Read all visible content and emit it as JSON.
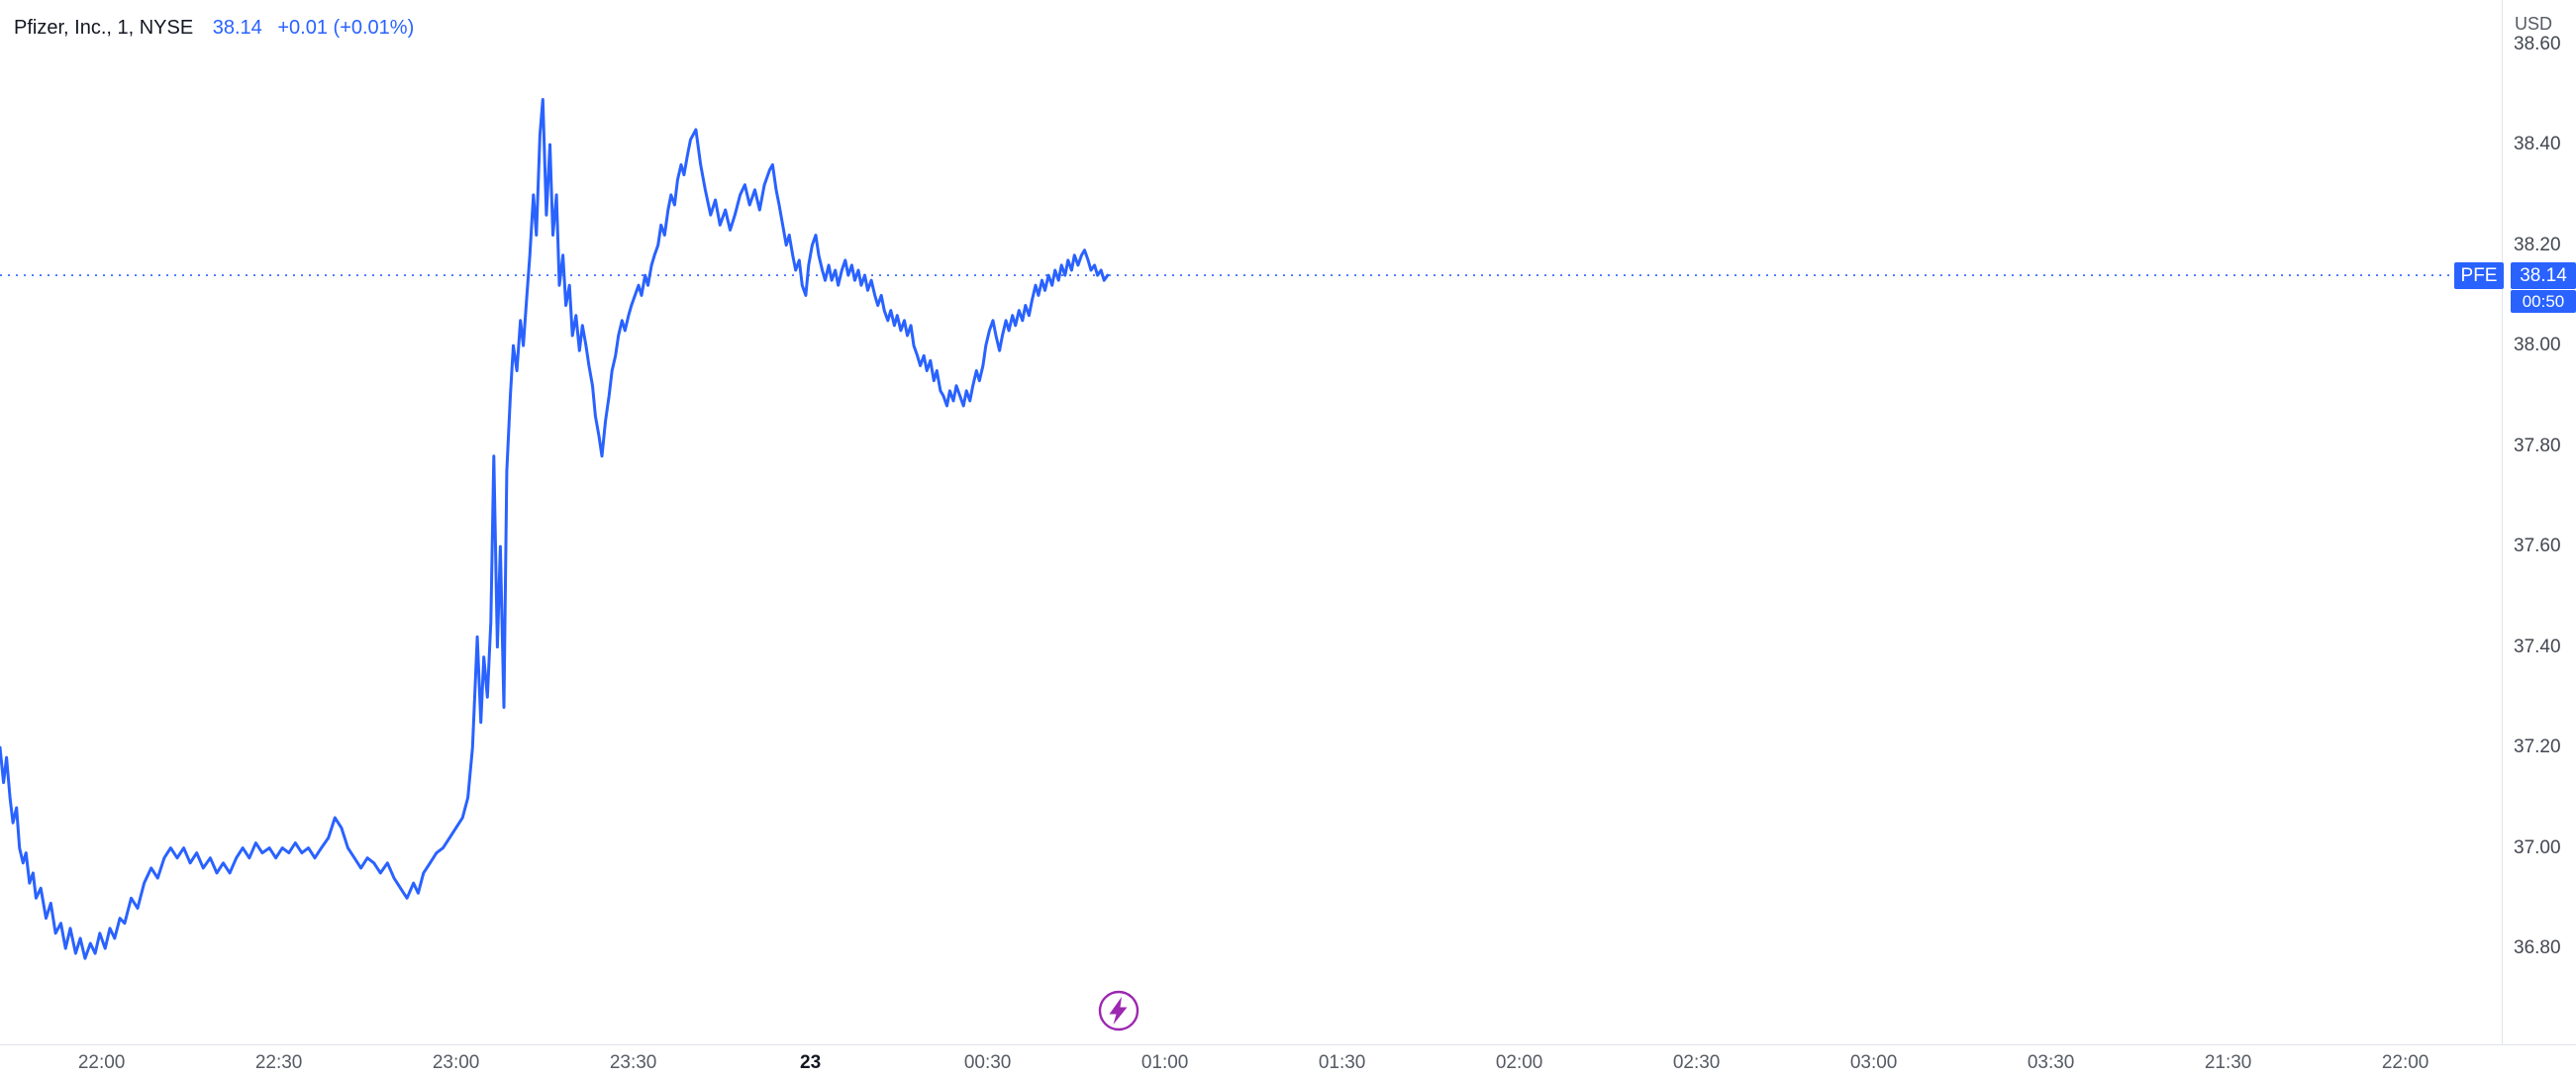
{
  "legend": {
    "title": "Pfizer, Inc., 1, NYSE",
    "price": "38.14",
    "change": "+0.01 (+0.01%)"
  },
  "axis": {
    "currency_label": "USD"
  },
  "chart_data": {
    "type": "line",
    "symbol": "PFE",
    "title": "Pfizer, Inc., 1, NYSE",
    "interval": "1",
    "exchange": "NYSE",
    "currency": "USD",
    "last_price": 38.14,
    "last_price_str": "38.14",
    "change": "+0.01",
    "change_pct": "+0.01%",
    "countdown": "00:50",
    "line_color": "#2962ff",
    "label_bg_color": "#2962ff",
    "y_range": [
      36.54,
      38.688
    ],
    "grid": false,
    "y_ticks": [
      38.6,
      38.4,
      38.2,
      38.0,
      37.8,
      37.6,
      37.4,
      37.2,
      37.0,
      36.8
    ],
    "x_ticks": [
      {
        "label": "22:00",
        "t": 17.2,
        "bold": false
      },
      {
        "label": "22:30",
        "t": 47.2,
        "bold": false
      },
      {
        "label": "23:00",
        "t": 77.2,
        "bold": false
      },
      {
        "label": "23:30",
        "t": 107.2,
        "bold": false
      },
      {
        "label": "23",
        "t": 137.2,
        "bold": true
      },
      {
        "label": "00:30",
        "t": 167.2,
        "bold": false
      },
      {
        "label": "01:00",
        "t": 197.2,
        "bold": false
      },
      {
        "label": "01:30",
        "t": 227.2,
        "bold": false
      },
      {
        "label": "02:00",
        "t": 257.2,
        "bold": false
      },
      {
        "label": "02:30",
        "t": 287.2,
        "bold": false
      },
      {
        "label": "03:00",
        "t": 317.2,
        "bold": false
      },
      {
        "label": "03:30",
        "t": 347.2,
        "bold": false
      },
      {
        "label": "21:30",
        "t": 377.2,
        "bold": false
      },
      {
        "label": "22:00",
        "t": 407.2,
        "bold": false
      }
    ],
    "points": [
      [
        0,
        37.2
      ],
      [
        0.6,
        37.13
      ],
      [
        1.1,
        37.18
      ],
      [
        1.7,
        37.1
      ],
      [
        2.2,
        37.05
      ],
      [
        2.8,
        37.08
      ],
      [
        3.3,
        37.0
      ],
      [
        3.9,
        36.97
      ],
      [
        4.4,
        36.99
      ],
      [
        5,
        36.93
      ],
      [
        5.6,
        36.95
      ],
      [
        6.1,
        36.9
      ],
      [
        6.9,
        36.92
      ],
      [
        7.8,
        36.86
      ],
      [
        8.6,
        36.89
      ],
      [
        9.4,
        36.83
      ],
      [
        10.3,
        36.85
      ],
      [
        11.1,
        36.8
      ],
      [
        11.9,
        36.84
      ],
      [
        12.8,
        36.79
      ],
      [
        13.6,
        36.82
      ],
      [
        14.4,
        36.78
      ],
      [
        15.3,
        36.81
      ],
      [
        16.1,
        36.79
      ],
      [
        16.9,
        36.83
      ],
      [
        17.8,
        36.8
      ],
      [
        18.6,
        36.84
      ],
      [
        19.4,
        36.82
      ],
      [
        20.3,
        36.86
      ],
      [
        21.1,
        36.85
      ],
      [
        22.2,
        36.9
      ],
      [
        23.3,
        36.88
      ],
      [
        24.4,
        36.93
      ],
      [
        25.6,
        36.96
      ],
      [
        26.7,
        36.94
      ],
      [
        27.8,
        36.98
      ],
      [
        28.9,
        37.0
      ],
      [
        30,
        36.98
      ],
      [
        31.1,
        37.0
      ],
      [
        32.2,
        36.97
      ],
      [
        33.3,
        36.99
      ],
      [
        34.4,
        36.96
      ],
      [
        35.6,
        36.98
      ],
      [
        36.7,
        36.95
      ],
      [
        37.8,
        36.97
      ],
      [
        38.9,
        36.95
      ],
      [
        40,
        36.98
      ],
      [
        41.1,
        37.0
      ],
      [
        42.2,
        36.98
      ],
      [
        43.3,
        37.01
      ],
      [
        44.4,
        36.99
      ],
      [
        45.6,
        37.0
      ],
      [
        46.7,
        36.98
      ],
      [
        47.8,
        37.0
      ],
      [
        48.9,
        36.99
      ],
      [
        50,
        37.01
      ],
      [
        51.1,
        36.99
      ],
      [
        52.2,
        37.0
      ],
      [
        53.3,
        36.98
      ],
      [
        54.4,
        37.0
      ],
      [
        55.6,
        37.02
      ],
      [
        56.7,
        37.06
      ],
      [
        57.8,
        37.04
      ],
      [
        58.9,
        37.0
      ],
      [
        60,
        36.98
      ],
      [
        61.1,
        36.96
      ],
      [
        62.2,
        36.98
      ],
      [
        63.3,
        36.97
      ],
      [
        64.4,
        36.95
      ],
      [
        65.6,
        36.97
      ],
      [
        66.7,
        36.94
      ],
      [
        67.8,
        36.92
      ],
      [
        68.9,
        36.9
      ],
      [
        70,
        36.93
      ],
      [
        70.8,
        36.91
      ],
      [
        71.7,
        36.95
      ],
      [
        72.8,
        36.97
      ],
      [
        73.9,
        36.99
      ],
      [
        75,
        37.0
      ],
      [
        76.1,
        37.02
      ],
      [
        77.2,
        37.04
      ],
      [
        78.3,
        37.06
      ],
      [
        79.2,
        37.1
      ],
      [
        80,
        37.2
      ],
      [
        80.8,
        37.42
      ],
      [
        81.4,
        37.25
      ],
      [
        81.9,
        37.38
      ],
      [
        82.5,
        37.3
      ],
      [
        83.1,
        37.45
      ],
      [
        83.6,
        37.78
      ],
      [
        84.2,
        37.4
      ],
      [
        84.7,
        37.6
      ],
      [
        85.3,
        37.28
      ],
      [
        85.8,
        37.75
      ],
      [
        86.4,
        37.9
      ],
      [
        86.9,
        38.0
      ],
      [
        87.5,
        37.95
      ],
      [
        88.1,
        38.05
      ],
      [
        88.6,
        38.0
      ],
      [
        89.2,
        38.1
      ],
      [
        89.7,
        38.18
      ],
      [
        90.3,
        38.3
      ],
      [
        90.8,
        38.22
      ],
      [
        91.4,
        38.42
      ],
      [
        91.9,
        38.49
      ],
      [
        92.5,
        38.26
      ],
      [
        93.1,
        38.4
      ],
      [
        93.6,
        38.22
      ],
      [
        94.2,
        38.3
      ],
      [
        94.7,
        38.12
      ],
      [
        95.3,
        38.18
      ],
      [
        95.8,
        38.08
      ],
      [
        96.4,
        38.12
      ],
      [
        96.9,
        38.02
      ],
      [
        97.5,
        38.06
      ],
      [
        98.1,
        37.99
      ],
      [
        98.6,
        38.04
      ],
      [
        99.2,
        38.0
      ],
      [
        99.7,
        37.96
      ],
      [
        100.3,
        37.92
      ],
      [
        100.8,
        37.86
      ],
      [
        101.4,
        37.82
      ],
      [
        101.9,
        37.78
      ],
      [
        102.5,
        37.85
      ],
      [
        103.1,
        37.9
      ],
      [
        103.6,
        37.95
      ],
      [
        104.2,
        37.98
      ],
      [
        104.7,
        38.02
      ],
      [
        105.3,
        38.05
      ],
      [
        105.8,
        38.03
      ],
      [
        106.4,
        38.06
      ],
      [
        106.9,
        38.08
      ],
      [
        107.5,
        38.1
      ],
      [
        108.1,
        38.12
      ],
      [
        108.6,
        38.1
      ],
      [
        109.2,
        38.14
      ],
      [
        109.7,
        38.12
      ],
      [
        110.3,
        38.16
      ],
      [
        110.8,
        38.18
      ],
      [
        111.4,
        38.2
      ],
      [
        111.9,
        38.24
      ],
      [
        112.5,
        38.22
      ],
      [
        113.1,
        38.27
      ],
      [
        113.6,
        38.3
      ],
      [
        114.2,
        38.28
      ],
      [
        114.7,
        38.33
      ],
      [
        115.3,
        38.36
      ],
      [
        115.8,
        38.34
      ],
      [
        116.4,
        38.38
      ],
      [
        116.9,
        38.41
      ],
      [
        117.8,
        38.43
      ],
      [
        118.6,
        38.36
      ],
      [
        119.4,
        38.31
      ],
      [
        120.3,
        38.26
      ],
      [
        121.1,
        38.29
      ],
      [
        121.9,
        38.24
      ],
      [
        122.8,
        38.27
      ],
      [
        123.6,
        38.23
      ],
      [
        124.4,
        38.26
      ],
      [
        125.3,
        38.3
      ],
      [
        126.1,
        38.32
      ],
      [
        126.9,
        38.28
      ],
      [
        127.8,
        38.31
      ],
      [
        128.6,
        38.27
      ],
      [
        129.4,
        38.32
      ],
      [
        130.3,
        38.35
      ],
      [
        130.8,
        38.36
      ],
      [
        131.4,
        38.31
      ],
      [
        131.9,
        38.28
      ],
      [
        132.5,
        38.24
      ],
      [
        133.1,
        38.2
      ],
      [
        133.6,
        38.22
      ],
      [
        134.2,
        38.18
      ],
      [
        134.7,
        38.15
      ],
      [
        135.3,
        38.17
      ],
      [
        135.8,
        38.12
      ],
      [
        136.4,
        38.1
      ],
      [
        136.9,
        38.16
      ],
      [
        137.5,
        38.2
      ],
      [
        138.1,
        38.22
      ],
      [
        138.6,
        38.18
      ],
      [
        139.2,
        38.15
      ],
      [
        139.7,
        38.13
      ],
      [
        140.3,
        38.16
      ],
      [
        140.8,
        38.13
      ],
      [
        141.4,
        38.15
      ],
      [
        141.9,
        38.12
      ],
      [
        142.5,
        38.15
      ],
      [
        143.1,
        38.17
      ],
      [
        143.6,
        38.14
      ],
      [
        144.2,
        38.16
      ],
      [
        144.7,
        38.13
      ],
      [
        145.3,
        38.15
      ],
      [
        145.8,
        38.12
      ],
      [
        146.4,
        38.14
      ],
      [
        146.9,
        38.11
      ],
      [
        147.5,
        38.13
      ],
      [
        148.1,
        38.1
      ],
      [
        148.6,
        38.08
      ],
      [
        149.2,
        38.1
      ],
      [
        149.7,
        38.07
      ],
      [
        150.3,
        38.05
      ],
      [
        150.8,
        38.07
      ],
      [
        151.4,
        38.04
      ],
      [
        151.9,
        38.06
      ],
      [
        152.5,
        38.03
      ],
      [
        153.1,
        38.05
      ],
      [
        153.6,
        38.02
      ],
      [
        154.2,
        38.04
      ],
      [
        154.7,
        38.0
      ],
      [
        155.3,
        37.98
      ],
      [
        155.8,
        37.96
      ],
      [
        156.4,
        37.98
      ],
      [
        156.9,
        37.95
      ],
      [
        157.5,
        37.97
      ],
      [
        158.1,
        37.93
      ],
      [
        158.6,
        37.95
      ],
      [
        159.2,
        37.91
      ],
      [
        159.7,
        37.9
      ],
      [
        160.3,
        37.88
      ],
      [
        160.8,
        37.91
      ],
      [
        161.4,
        37.89
      ],
      [
        161.9,
        37.92
      ],
      [
        162.5,
        37.9
      ],
      [
        163.1,
        37.88
      ],
      [
        163.6,
        37.91
      ],
      [
        164.2,
        37.89
      ],
      [
        164.7,
        37.92
      ],
      [
        165.3,
        37.95
      ],
      [
        165.8,
        37.93
      ],
      [
        166.4,
        37.96
      ],
      [
        166.9,
        38.0
      ],
      [
        167.5,
        38.03
      ],
      [
        168.1,
        38.05
      ],
      [
        168.6,
        38.02
      ],
      [
        169.2,
        37.99
      ],
      [
        169.7,
        38.02
      ],
      [
        170.3,
        38.05
      ],
      [
        170.8,
        38.03
      ],
      [
        171.4,
        38.06
      ],
      [
        171.9,
        38.04
      ],
      [
        172.5,
        38.07
      ],
      [
        173.1,
        38.05
      ],
      [
        173.6,
        38.08
      ],
      [
        174.2,
        38.06
      ],
      [
        174.7,
        38.09
      ],
      [
        175.3,
        38.12
      ],
      [
        175.8,
        38.1
      ],
      [
        176.4,
        38.13
      ],
      [
        176.9,
        38.11
      ],
      [
        177.5,
        38.14
      ],
      [
        178.1,
        38.12
      ],
      [
        178.6,
        38.15
      ],
      [
        179.2,
        38.13
      ],
      [
        179.7,
        38.16
      ],
      [
        180.3,
        38.14
      ],
      [
        180.8,
        38.17
      ],
      [
        181.4,
        38.15
      ],
      [
        181.9,
        38.18
      ],
      [
        182.5,
        38.16
      ],
      [
        183.1,
        38.18
      ],
      [
        183.6,
        38.19
      ],
      [
        184.2,
        38.17
      ],
      [
        184.7,
        38.15
      ],
      [
        185.3,
        38.16
      ],
      [
        185.8,
        38.14
      ],
      [
        186.4,
        38.15
      ],
      [
        186.9,
        38.13
      ],
      [
        187.5,
        38.14
      ]
    ]
  }
}
